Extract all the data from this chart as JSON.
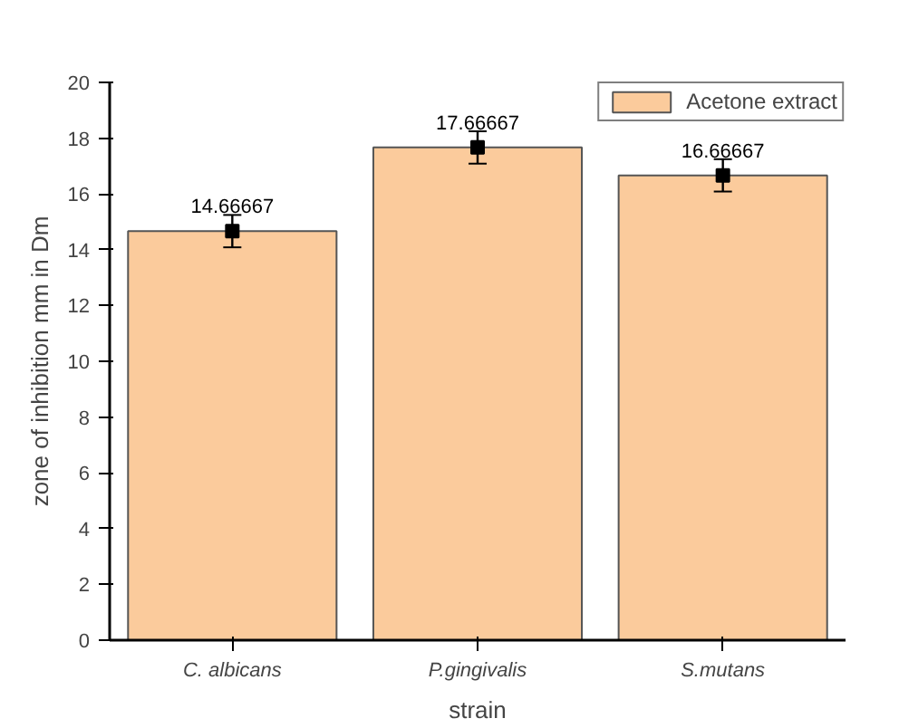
{
  "chart_data": {
    "type": "bar",
    "xlabel": "strain",
    "ylabel": "zone of inhibition mm in Dm",
    "categories": [
      "C. albicans",
      "P.gingivalis",
      "S.mutans"
    ],
    "series": [
      {
        "name": "Acetone extract",
        "color": "#fbcb9c",
        "values": [
          14.66667,
          17.66667,
          16.66667
        ]
      },
      {
        "type": "scatter",
        "color": "#000000",
        "values": [
          14.66667,
          17.66667,
          16.66667
        ],
        "errors": [
          0.58,
          0.58,
          0.58
        ],
        "value_labels": [
          "14.66667",
          "17.66667",
          "16.66667"
        ]
      }
    ],
    "marker": "square",
    "ylim": [
      0,
      20
    ],
    "yticks": [
      0,
      2,
      4,
      6,
      8,
      10,
      12,
      14,
      16,
      18,
      20
    ],
    "legend": "top right"
  }
}
